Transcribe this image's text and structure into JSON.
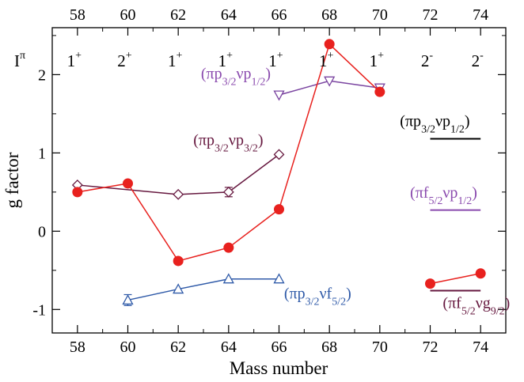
{
  "chart_data": {
    "type": "scatter",
    "xlabel": "Mass number",
    "ylabel": "g factor",
    "xlim": [
      57,
      75
    ],
    "ylim": [
      -1.3,
      2.6
    ],
    "x_ticks": [
      58,
      60,
      62,
      64,
      66,
      68,
      70,
      72,
      74
    ],
    "y_ticks": [
      -1,
      0,
      1,
      2
    ],
    "y_tick_labels": [
      "-1",
      "0",
      "1",
      "2"
    ],
    "top_axis": {
      "ticks": [
        58,
        60,
        62,
        64,
        66,
        68,
        70,
        72,
        74
      ],
      "spin_label": "I",
      "spin_label_sup": "π",
      "spins": [
        {
          "x": 58,
          "base": "1",
          "sup": "+"
        },
        {
          "x": 60,
          "base": "2",
          "sup": "+"
        },
        {
          "x": 62,
          "base": "1",
          "sup": "+"
        },
        {
          "x": 64,
          "base": "1",
          "sup": "+"
        },
        {
          "x": 66,
          "base": "1",
          "sup": "+"
        },
        {
          "x": 68,
          "base": "1",
          "sup": "+"
        },
        {
          "x": 70,
          "base": "1",
          "sup": "+"
        },
        {
          "x": 72,
          "base": "2",
          "sup": "-"
        },
        {
          "x": 74,
          "base": "2",
          "sup": "-"
        }
      ]
    },
    "series": [
      {
        "marker": "circle-filled",
        "color": "#e8211e",
        "segments": [
          [
            {
              "x": 58,
              "y": 0.5
            },
            {
              "x": 60,
              "y": 0.61
            },
            {
              "x": 62,
              "y": -0.38
            },
            {
              "x": 64,
              "y": -0.21
            },
            {
              "x": 66,
              "y": 0.28
            },
            {
              "x": 68,
              "y": 2.39
            },
            {
              "x": 70,
              "y": 1.78
            }
          ],
          [
            {
              "x": 72,
              "y": -0.67
            },
            {
              "x": 74,
              "y": -0.54
            }
          ]
        ]
      },
      {
        "label_parts": [
          {
            "t": "(πp"
          },
          {
            "t": "3/2",
            "sub": true
          },
          {
            "t": "νp"
          },
          {
            "t": "3/2",
            "sub": true
          },
          {
            "t": ")"
          }
        ],
        "label_color": "#66183f",
        "label_anchor": {
          "x": 62.6,
          "y": 1.1
        },
        "marker": "diamond-open",
        "color": "#66183f",
        "segments": [
          [
            {
              "x": 58,
              "y": 0.59
            },
            {
              "x": 62,
              "y": 0.47
            },
            {
              "x": 64,
              "y": 0.5,
              "err": 0.06
            },
            {
              "x": 66,
              "y": 0.98
            }
          ]
        ]
      },
      {
        "label_parts": [
          {
            "t": "(πp"
          },
          {
            "t": "3/2",
            "sub": true
          },
          {
            "t": "νp"
          },
          {
            "t": "1/2",
            "sub": true
          },
          {
            "t": ")"
          }
        ],
        "label_color": "#8a4aae",
        "label_anchor": {
          "x": 62.9,
          "y": 1.95
        },
        "marker": "triangle-down-open",
        "color": "#7a44a0",
        "segments": [
          [
            {
              "x": 66,
              "y": 1.74
            },
            {
              "x": 68,
              "y": 1.92
            },
            {
              "x": 70,
              "y": 1.83
            }
          ]
        ]
      },
      {
        "label_parts": [
          {
            "t": "(πp"
          },
          {
            "t": "3/2",
            "sub": true
          },
          {
            "t": "νf"
          },
          {
            "t": "5/2",
            "sub": true
          },
          {
            "t": ")"
          }
        ],
        "label_color": "#2f5aa8",
        "label_anchor": {
          "x": 66.2,
          "y": -0.86
        },
        "marker": "triangle-up-open",
        "color": "#2f5aa8",
        "segments": [
          [
            {
              "x": 60,
              "y": -0.88,
              "err": 0.07
            },
            {
              "x": 62,
              "y": -0.74
            },
            {
              "x": 64,
              "y": -0.61
            },
            {
              "x": 66,
              "y": -0.61
            }
          ]
        ]
      }
    ],
    "reference_lines": [
      {
        "label_parts": [
          {
            "t": "(πp"
          },
          {
            "t": "3/2",
            "sub": true
          },
          {
            "t": "νp"
          },
          {
            "t": "1/2",
            "sub": true
          },
          {
            "t": ")"
          }
        ],
        "y": 1.18,
        "x_from": 72,
        "x_to": 74,
        "color": "#000000",
        "label_anchor": {
          "x": 70.8,
          "y": 1.34
        }
      },
      {
        "label_parts": [
          {
            "t": "(πf"
          },
          {
            "t": "5/2",
            "sub": true
          },
          {
            "t": "νp"
          },
          {
            "t": "1/2",
            "sub": true
          },
          {
            "t": ")"
          }
        ],
        "y": 0.27,
        "x_from": 72,
        "x_to": 74,
        "color": "#8a4aae",
        "label_anchor": {
          "x": 71.2,
          "y": 0.43
        }
      },
      {
        "label_parts": [
          {
            "t": "(πf"
          },
          {
            "t": "5/2",
            "sub": true
          },
          {
            "t": "νg"
          },
          {
            "t": "9/2",
            "sub": true
          },
          {
            "t": ")"
          }
        ],
        "y": -0.76,
        "x_from": 72,
        "x_to": 74,
        "color": "#66183f",
        "label_anchor": {
          "x": 72.5,
          "y": -0.98
        }
      }
    ]
  }
}
